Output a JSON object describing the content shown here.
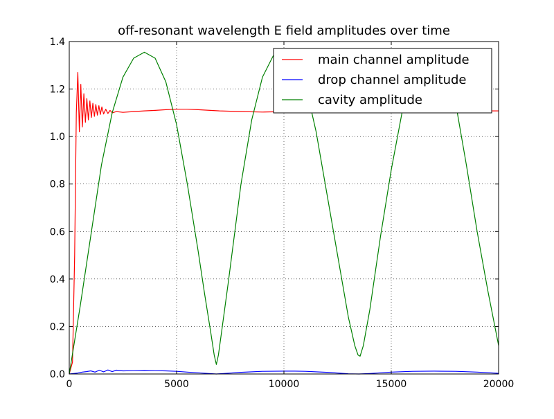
{
  "chart_data": {
    "type": "line",
    "title": "off-resonant wavelength E field amplitudes over time",
    "xlabel": "",
    "ylabel": "",
    "xlim": [
      0,
      20000
    ],
    "ylim": [
      0,
      1.4
    ],
    "xticks": [
      0,
      5000,
      10000,
      15000,
      20000
    ],
    "xtick_labels": [
      "0",
      "5000",
      "10000",
      "15000",
      "20000"
    ],
    "yticks": [
      0,
      0.2,
      0.4,
      0.6,
      0.8,
      1.0,
      1.2,
      1.4
    ],
    "ytick_labels": [
      "0.0",
      "0.2",
      "0.4",
      "0.6",
      "0.8",
      "1.0",
      "1.2",
      "1.4"
    ],
    "grid": true,
    "legend_position": "top-right",
    "series": [
      {
        "name": "main channel amplitude",
        "color": "#ff0000",
        "x": [
          0,
          150,
          250,
          330,
          400,
          470,
          540,
          610,
          680,
          750,
          820,
          890,
          960,
          1030,
          1100,
          1170,
          1240,
          1310,
          1380,
          1450,
          1520,
          1600,
          1700,
          1800,
          1900,
          2000,
          2200,
          2500,
          3000,
          3500,
          4000,
          4500,
          5000,
          5500,
          6000,
          7000,
          8000,
          9000,
          10000,
          11000,
          12000,
          13000,
          14000,
          15000,
          16000,
          17000,
          18000,
          19000,
          20000
        ],
        "y": [
          0.0,
          0.05,
          0.5,
          1.1,
          1.27,
          1.02,
          1.22,
          1.04,
          1.18,
          1.06,
          1.16,
          1.07,
          1.15,
          1.08,
          1.14,
          1.085,
          1.135,
          1.09,
          1.13,
          1.093,
          1.125,
          1.095,
          1.115,
          1.097,
          1.11,
          1.1,
          1.105,
          1.102,
          1.105,
          1.108,
          1.11,
          1.113,
          1.115,
          1.115,
          1.113,
          1.108,
          1.105,
          1.103,
          1.105,
          1.108,
          1.111,
          1.112,
          1.111,
          1.109,
          1.107,
          1.106,
          1.107,
          1.108,
          1.108
        ]
      },
      {
        "name": "drop channel amplitude",
        "color": "#0000ff",
        "x": [
          0,
          200,
          400,
          600,
          800,
          1000,
          1200,
          1400,
          1600,
          1800,
          2000,
          2200,
          2500,
          3000,
          3500,
          4000,
          4500,
          5000,
          5500,
          6000,
          6500,
          6850,
          7200,
          8000,
          9000,
          10000,
          10500,
          11000,
          12000,
          12500,
          13000,
          13500,
          14000,
          15000,
          16000,
          17000,
          18000,
          19000,
          20000
        ],
        "y": [
          0.0,
          0.002,
          0.004,
          0.008,
          0.01,
          0.013,
          0.008,
          0.016,
          0.009,
          0.017,
          0.01,
          0.016,
          0.013,
          0.014,
          0.015,
          0.014,
          0.013,
          0.011,
          0.008,
          0.005,
          0.002,
          0.0,
          0.002,
          0.007,
          0.011,
          0.012,
          0.012,
          0.011,
          0.007,
          0.004,
          0.001,
          0.0,
          0.002,
          0.008,
          0.011,
          0.012,
          0.011,
          0.008,
          0.003
        ]
      },
      {
        "name": "cavity amplitude",
        "color": "#008000",
        "x": [
          0,
          500,
          1000,
          1500,
          2000,
          2500,
          3000,
          3500,
          4000,
          4500,
          5000,
          5500,
          6000,
          6300,
          6600,
          6750,
          6850,
          6950,
          7100,
          7400,
          8000,
          8500,
          9000,
          9500,
          10000,
          10200,
          10500,
          11000,
          11500,
          12000,
          12500,
          13000,
          13300,
          13450,
          13550,
          13700,
          14000,
          14500,
          15000,
          15500,
          16000,
          16500,
          17000,
          17500,
          18000,
          18500,
          19000,
          19500,
          20000
        ],
        "y": [
          0.0,
          0.28,
          0.58,
          0.88,
          1.1,
          1.25,
          1.33,
          1.355,
          1.33,
          1.23,
          1.05,
          0.8,
          0.52,
          0.34,
          0.17,
          0.08,
          0.04,
          0.08,
          0.18,
          0.38,
          0.8,
          1.07,
          1.25,
          1.34,
          1.36,
          1.355,
          1.33,
          1.22,
          1.02,
          0.76,
          0.5,
          0.24,
          0.12,
          0.08,
          0.075,
          0.12,
          0.27,
          0.58,
          0.86,
          1.1,
          1.27,
          1.34,
          1.35,
          1.3,
          1.14,
          0.88,
          0.6,
          0.35,
          0.12
        ]
      }
    ]
  }
}
